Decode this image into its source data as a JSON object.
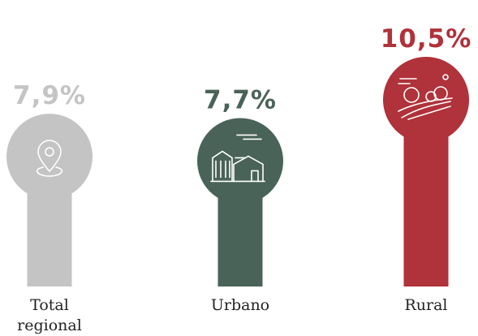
{
  "chart_data": {
    "type": "bar",
    "categories": [
      "Total regional",
      "Urbano",
      "Rural"
    ],
    "values": [
      7.9,
      7.7,
      10.5
    ],
    "value_labels": [
      "7,9%",
      "7,7%",
      "10,5%"
    ],
    "colors": [
      "#c4c4c4",
      "#4a6358",
      "#b0323a"
    ]
  }
}
